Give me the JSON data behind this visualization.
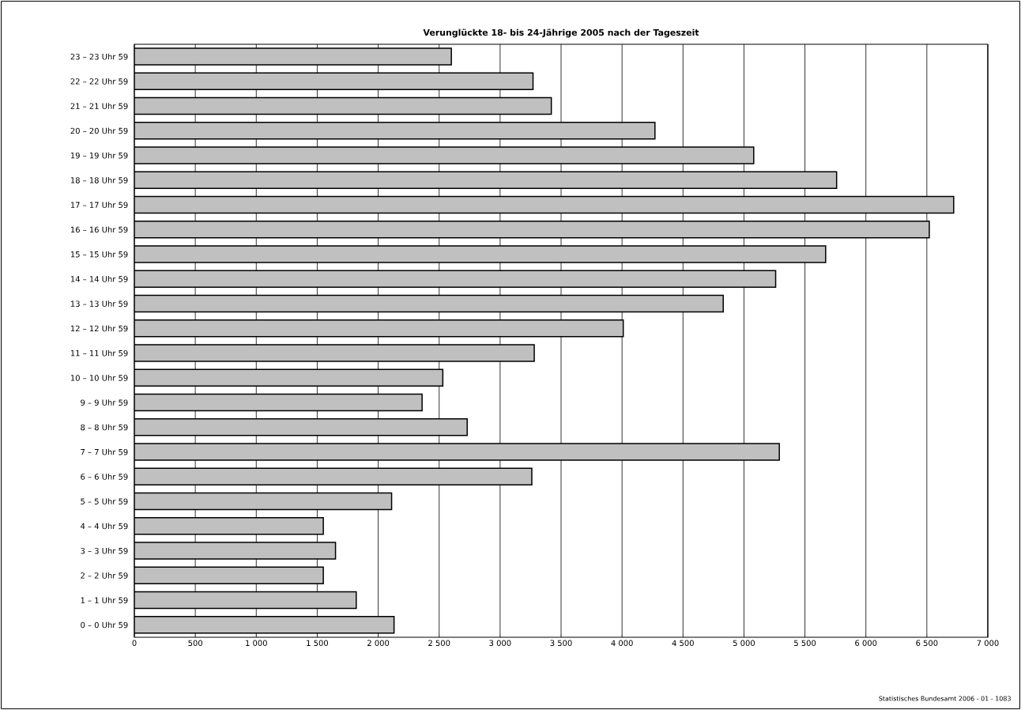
{
  "chart_data": {
    "type": "bar",
    "orientation": "horizontal",
    "title": "Verunglückte 18- bis 24-Jährige 2005 nach der Tageszeit",
    "categories": [
      "23 – 23 Uhr 59",
      "22 – 22 Uhr 59",
      "21 – 21 Uhr 59",
      "20 – 20 Uhr 59",
      "19 – 19 Uhr 59",
      "18 – 18 Uhr 59",
      "17 – 17 Uhr 59",
      "16 – 16 Uhr 59",
      "15 – 15 Uhr 59",
      "14 – 14 Uhr 59",
      "13 – 13 Uhr 59",
      "12 – 12 Uhr 59",
      "11 – 11 Uhr 59",
      "10 – 10 Uhr 59",
      "9 –  9 Uhr 59",
      "8 –  8 Uhr 59",
      "7 –  7 Uhr 59",
      "6 –  6 Uhr 59",
      "5 –  5 Uhr 59",
      "4 –  4 Uhr 59",
      "3 –  3 Uhr 59",
      "2 –  2 Uhr 59",
      "1 –  1 Uhr 59",
      "0 –  0 Uhr 59"
    ],
    "values": [
      2600,
      3270,
      3420,
      4270,
      5080,
      5760,
      6720,
      6520,
      5670,
      5260,
      4830,
      4010,
      3280,
      2530,
      2360,
      2730,
      5290,
      3260,
      2110,
      1550,
      1650,
      1550,
      1820,
      2130
    ],
    "color": "#c0c0c0",
    "xlim": [
      0,
      7000
    ],
    "xticks": [
      0,
      500,
      {
        "value": 1000,
        "label": "1 000"
      },
      {
        "value": 1500,
        "label": "1 500"
      },
      {
        "value": 2000,
        "label": "2 000"
      },
      {
        "value": 2500,
        "label": "2 500"
      },
      {
        "value": 3000,
        "label": "3 000"
      },
      {
        "value": 3500,
        "label": "3 500"
      },
      {
        "value": 4000,
        "label": "4 000"
      },
      {
        "value": 4500,
        "label": "4 500"
      },
      {
        "value": 5000,
        "label": "5 000"
      },
      {
        "value": 5500,
        "label": "5 500"
      },
      {
        "value": 6000,
        "label": "6 000"
      },
      {
        "value": 6500,
        "label": "6 500"
      },
      {
        "value": 7000,
        "label": "7 000"
      }
    ],
    "grid": "x",
    "annotations": [
      "Statistisches Bundesamt 2006 - 01 - 1083"
    ]
  }
}
